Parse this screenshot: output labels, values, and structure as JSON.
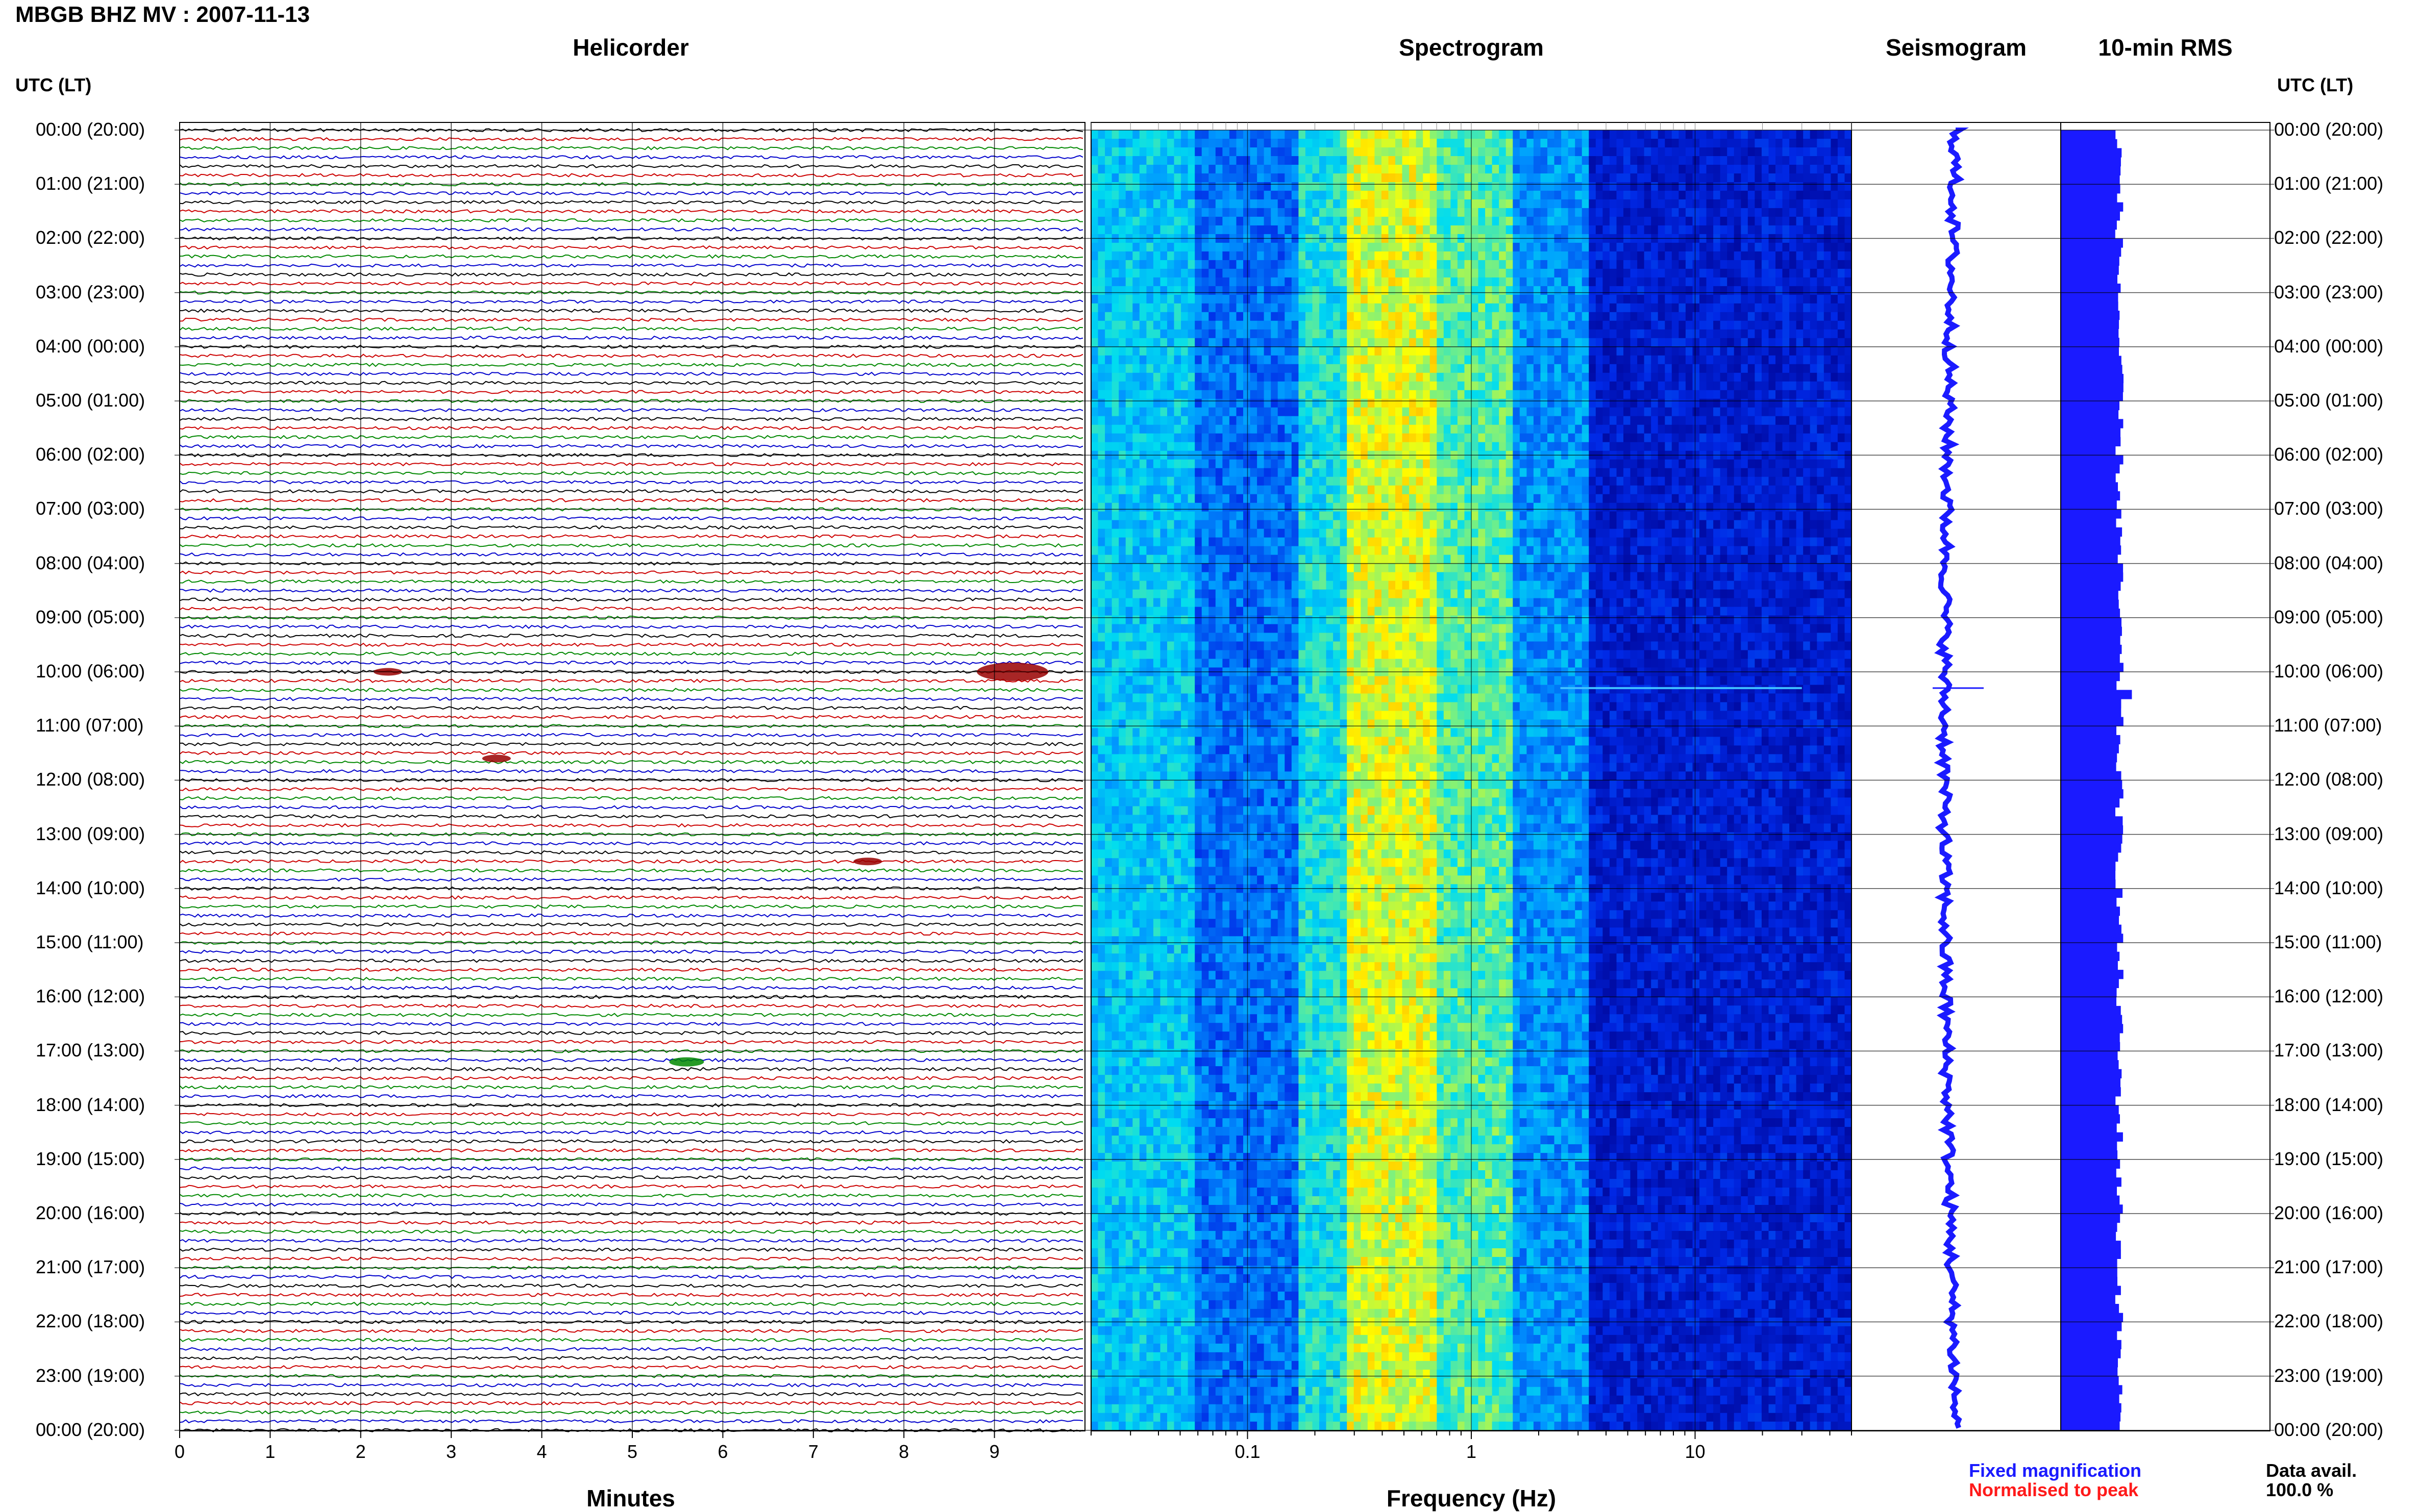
{
  "header": {
    "title": "MBGB BHZ MV : 2007-11-13"
  },
  "axis_left_label": "UTC (LT)",
  "axis_right_label": "UTC (LT)",
  "panels": {
    "helicorder": "Helicorder",
    "spectrogram": "Spectrogram",
    "seismogram": "Seismogram",
    "rms": "10-min RMS"
  },
  "legend": {
    "fixed": "Fixed magnification",
    "fixed_color": "#1a1aff",
    "normalised": "Normalised to peak",
    "normalised_color": "#ff1a1a"
  },
  "data_avail": {
    "label": "Data avail.",
    "value": "100.0 %"
  },
  "colors": {
    "trace_cycle": [
      "#000000",
      "#cc0000",
      "#008800",
      "#0000cc"
    ],
    "event": "#990000",
    "event_green": "#008800",
    "spectrogram_low": "#00007f",
    "spectrogram_high": "#ffff00",
    "seismogram": "#1a1aff",
    "rms": "#1a1aff"
  },
  "chart_data": {
    "type": "heatmap",
    "time_labels": [
      "00:00 (20:00)",
      "01:00 (21:00)",
      "02:00 (22:00)",
      "03:00 (23:00)",
      "04:00 (00:00)",
      "05:00 (01:00)",
      "06:00 (02:00)",
      "07:00 (03:00)",
      "08:00 (04:00)",
      "09:00 (05:00)",
      "10:00 (06:00)",
      "11:00 (07:00)",
      "12:00 (08:00)",
      "13:00 (09:00)",
      "14:00 (10:00)",
      "15:00 (11:00)",
      "16:00 (12:00)",
      "17:00 (13:00)",
      "18:00 (14:00)",
      "19:00 (15:00)",
      "20:00 (16:00)",
      "21:00 (17:00)",
      "22:00 (18:00)",
      "23:00 (19:00)",
      "00:00 (20:00)"
    ],
    "helicorder": {
      "xlabel": "Minutes",
      "xticks": [
        "0",
        "1",
        "2",
        "3",
        "4",
        "5",
        "6",
        "7",
        "8",
        "9"
      ],
      "xlim": [
        0,
        10
      ],
      "lines_per_hour": 6,
      "events": [
        {
          "hour": 10.0,
          "minute": 9.2,
          "strength": 1.0
        },
        {
          "hour": 10.0,
          "minute": 2.3,
          "strength": 0.3
        },
        {
          "hour": 17.2,
          "minute": 5.6,
          "strength": 0.4
        },
        {
          "hour": 11.6,
          "minute": 3.5,
          "strength": 0.3
        },
        {
          "hour": 13.5,
          "minute": 7.6,
          "strength": 0.3
        }
      ]
    },
    "spectrogram": {
      "xlabel": "Frequency (Hz)",
      "xscale": "log",
      "xlim": [
        0.02,
        50
      ],
      "xticks": [
        "0.1",
        "1",
        "10"
      ]
    },
    "seismogram": {
      "event_hour": 10.3
    },
    "rms": {
      "xlim": [
        0,
        1
      ]
    }
  }
}
